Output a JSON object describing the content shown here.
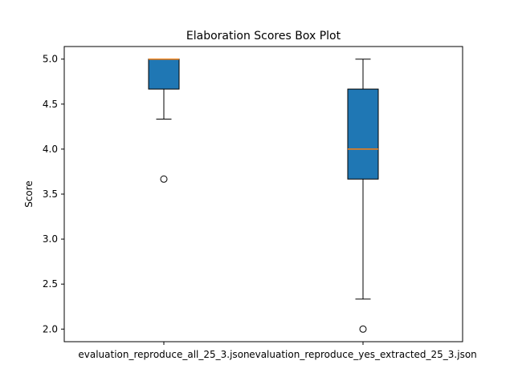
{
  "chart_data": {
    "type": "box",
    "title": "Elaboration Scores Box Plot",
    "xlabel": "",
    "ylabel": "Score",
    "ylim": [
      1.86,
      5.14
    ],
    "yticks": [
      2.0,
      2.5,
      3.0,
      3.5,
      4.0,
      4.5,
      5.0
    ],
    "ytick_labels": [
      "2.0",
      "2.5",
      "3.0",
      "3.5",
      "4.0",
      "4.5",
      "5.0"
    ],
    "grid": false,
    "categories": [
      "evaluation_reproduce_all_25_3.json",
      "evaluation_reproduce_yes_extracted_25_3.json"
    ],
    "boxes": [
      {
        "whisker_low": 4.333,
        "q1": 4.667,
        "median": 5.0,
        "q3": 5.0,
        "whisker_high": 5.0,
        "outliers": [
          3.667
        ]
      },
      {
        "whisker_low": 2.333,
        "q1": 3.667,
        "median": 4.0,
        "q3": 4.667,
        "whisker_high": 5.0,
        "outliers": [
          2.0
        ]
      }
    ],
    "colors": {
      "box_fill": "#1f77b4",
      "median": "#ff7f0e",
      "edge": "#000000"
    }
  }
}
